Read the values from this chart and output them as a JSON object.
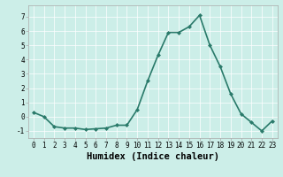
{
  "x": [
    0,
    1,
    2,
    3,
    4,
    5,
    6,
    7,
    8,
    9,
    10,
    11,
    12,
    13,
    14,
    15,
    16,
    17,
    18,
    19,
    20,
    21,
    22,
    23
  ],
  "y": [
    0.3,
    0.0,
    -0.7,
    -0.8,
    -0.8,
    -0.9,
    -0.85,
    -0.8,
    -0.6,
    -0.6,
    0.5,
    2.5,
    4.3,
    5.9,
    5.9,
    6.3,
    7.1,
    5.0,
    3.5,
    1.6,
    0.2,
    -0.4,
    -1.0,
    -0.3
  ],
  "line_color": "#2a7a6a",
  "marker": "D",
  "marker_size": 2.0,
  "bg_color": "#cceee8",
  "grid_color": "#ffffff",
  "xlabel": "Humidex (Indice chaleur)",
  "ylim": [
    -1.5,
    7.8
  ],
  "xlim": [
    -0.5,
    23.5
  ],
  "xticks": [
    0,
    1,
    2,
    3,
    4,
    5,
    6,
    7,
    8,
    9,
    10,
    11,
    12,
    13,
    14,
    15,
    16,
    17,
    18,
    19,
    20,
    21,
    22,
    23
  ],
  "yticks": [
    -1,
    0,
    1,
    2,
    3,
    4,
    5,
    6,
    7
  ],
  "tick_fontsize": 5.5,
  "xlabel_fontsize": 7.5,
  "line_width": 1.2,
  "grid_linewidth": 0.5,
  "spine_color": "#aaaaaa"
}
